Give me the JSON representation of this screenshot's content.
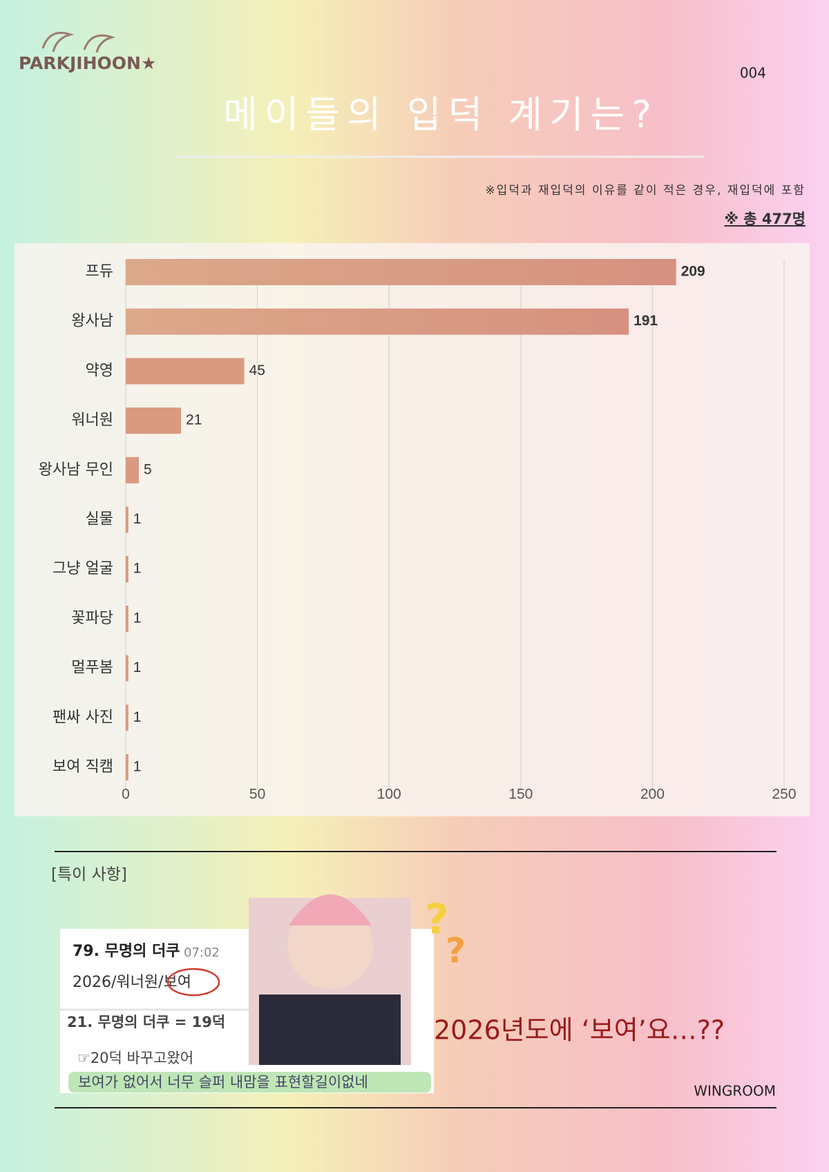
{
  "page": {
    "brand": "PARKJIHOON★",
    "page_number": "004",
    "section_label": "[특이 사항]",
    "comment_1_title": "79. 무명의 더쿠",
    "comment_1_time": "07:02",
    "comment_1_body": "2026/워너원/보여",
    "comment_2_title": "21. 무명의 더쿠 = 19덕",
    "comment_2_line_1": "☞20덕 바꾸고왔어",
    "comment_2_line_2": "보여가 없어서 너무 슬퍼 내맘을 표현할길이없네",
    "caption": "2026년도에 ‘보여’요…??",
    "credit": "WINGROOM"
  },
  "chart_data": {
    "type": "hbar",
    "title": "메이들의 입덕 계기는?",
    "note": "※입덕과 재입덕의 이유를 같이 적은 경우, 재입덕에 포함",
    "total": "※ 총 477명",
    "categories": [
      "프듀",
      "왕사남",
      "약영",
      "워너원",
      "왕사남 무인",
      "실물",
      "그냥 얼굴",
      "꽃파당",
      "멀푸봄",
      "팬싸 사진",
      "보여 직캠"
    ],
    "values": [
      209,
      191,
      45,
      21,
      5,
      1,
      1,
      1,
      1,
      1,
      1
    ],
    "color": "#d99a80",
    "xlim": [
      0,
      250
    ],
    "xticks": [
      0,
      50,
      100,
      150,
      200,
      250
    ],
    "grid": true
  }
}
